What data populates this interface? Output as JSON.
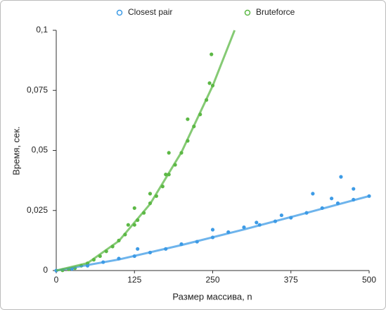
{
  "chart_data": {
    "type": "scatter",
    "xlabel": "Размер массива, n",
    "ylabel": "Время, сек.",
    "xlim": [
      0,
      500
    ],
    "ylim": [
      0,
      0.1
    ],
    "xticks": [
      0,
      125,
      250,
      375,
      500
    ],
    "yticks": [
      0,
      {
        "value": 0.025,
        "label": "0,025"
      },
      {
        "value": 0.05,
        "label": "0,05"
      },
      {
        "value": 0.075,
        "label": "0,075"
      },
      {
        "value": 0.1,
        "label": "0,1"
      }
    ],
    "series": [
      {
        "name": "Closest pair",
        "color": "#3d9be6",
        "x": [
          0,
          10,
          25,
          50,
          75,
          100,
          125,
          150,
          175,
          200,
          225,
          250,
          275,
          300,
          325,
          350,
          375,
          400,
          425,
          450,
          475,
          500,
          130,
          250,
          320,
          360,
          410,
          455,
          475,
          440
        ],
        "y": [
          0,
          0.0002,
          0.0007,
          0.002,
          0.0035,
          0.005,
          0.006,
          0.0075,
          0.009,
          0.011,
          0.012,
          0.0138,
          0.016,
          0.018,
          0.019,
          0.0205,
          0.022,
          0.024,
          0.026,
          0.028,
          0.0295,
          0.031,
          0.009,
          0.017,
          0.02,
          0.023,
          0.032,
          0.039,
          0.034,
          0.03
        ],
        "trend": {
          "x": [
            0,
            100,
            200,
            300,
            400,
            500
          ],
          "y": [
            0,
            0.0046,
            0.0106,
            0.0171,
            0.024,
            0.031
          ]
        }
      },
      {
        "name": "Bruteforce",
        "color": "#5cb845",
        "x": [
          10,
          20,
          30,
          40,
          50,
          60,
          70,
          80,
          90,
          100,
          110,
          115,
          125,
          130,
          140,
          150,
          160,
          170,
          175,
          180,
          190,
          200,
          210,
          220,
          230,
          240,
          245,
          250,
          248,
          180,
          125,
          150,
          210
        ],
        "y": [
          0.0001,
          0.0005,
          0.001,
          0.002,
          0.003,
          0.0045,
          0.006,
          0.008,
          0.01,
          0.0125,
          0.015,
          0.019,
          0.019,
          0.021,
          0.024,
          0.028,
          0.031,
          0.035,
          0.04,
          0.04,
          0.044,
          0.049,
          0.054,
          0.06,
          0.065,
          0.071,
          0.078,
          0.077,
          0.09,
          0.049,
          0.026,
          0.032,
          0.063
        ],
        "trend": {
          "x": [
            0,
            50,
            100,
            150,
            200,
            250,
            285
          ],
          "y": [
            0,
            0.0031,
            0.0123,
            0.0277,
            0.0492,
            0.0769,
            0.1
          ]
        }
      }
    ]
  }
}
